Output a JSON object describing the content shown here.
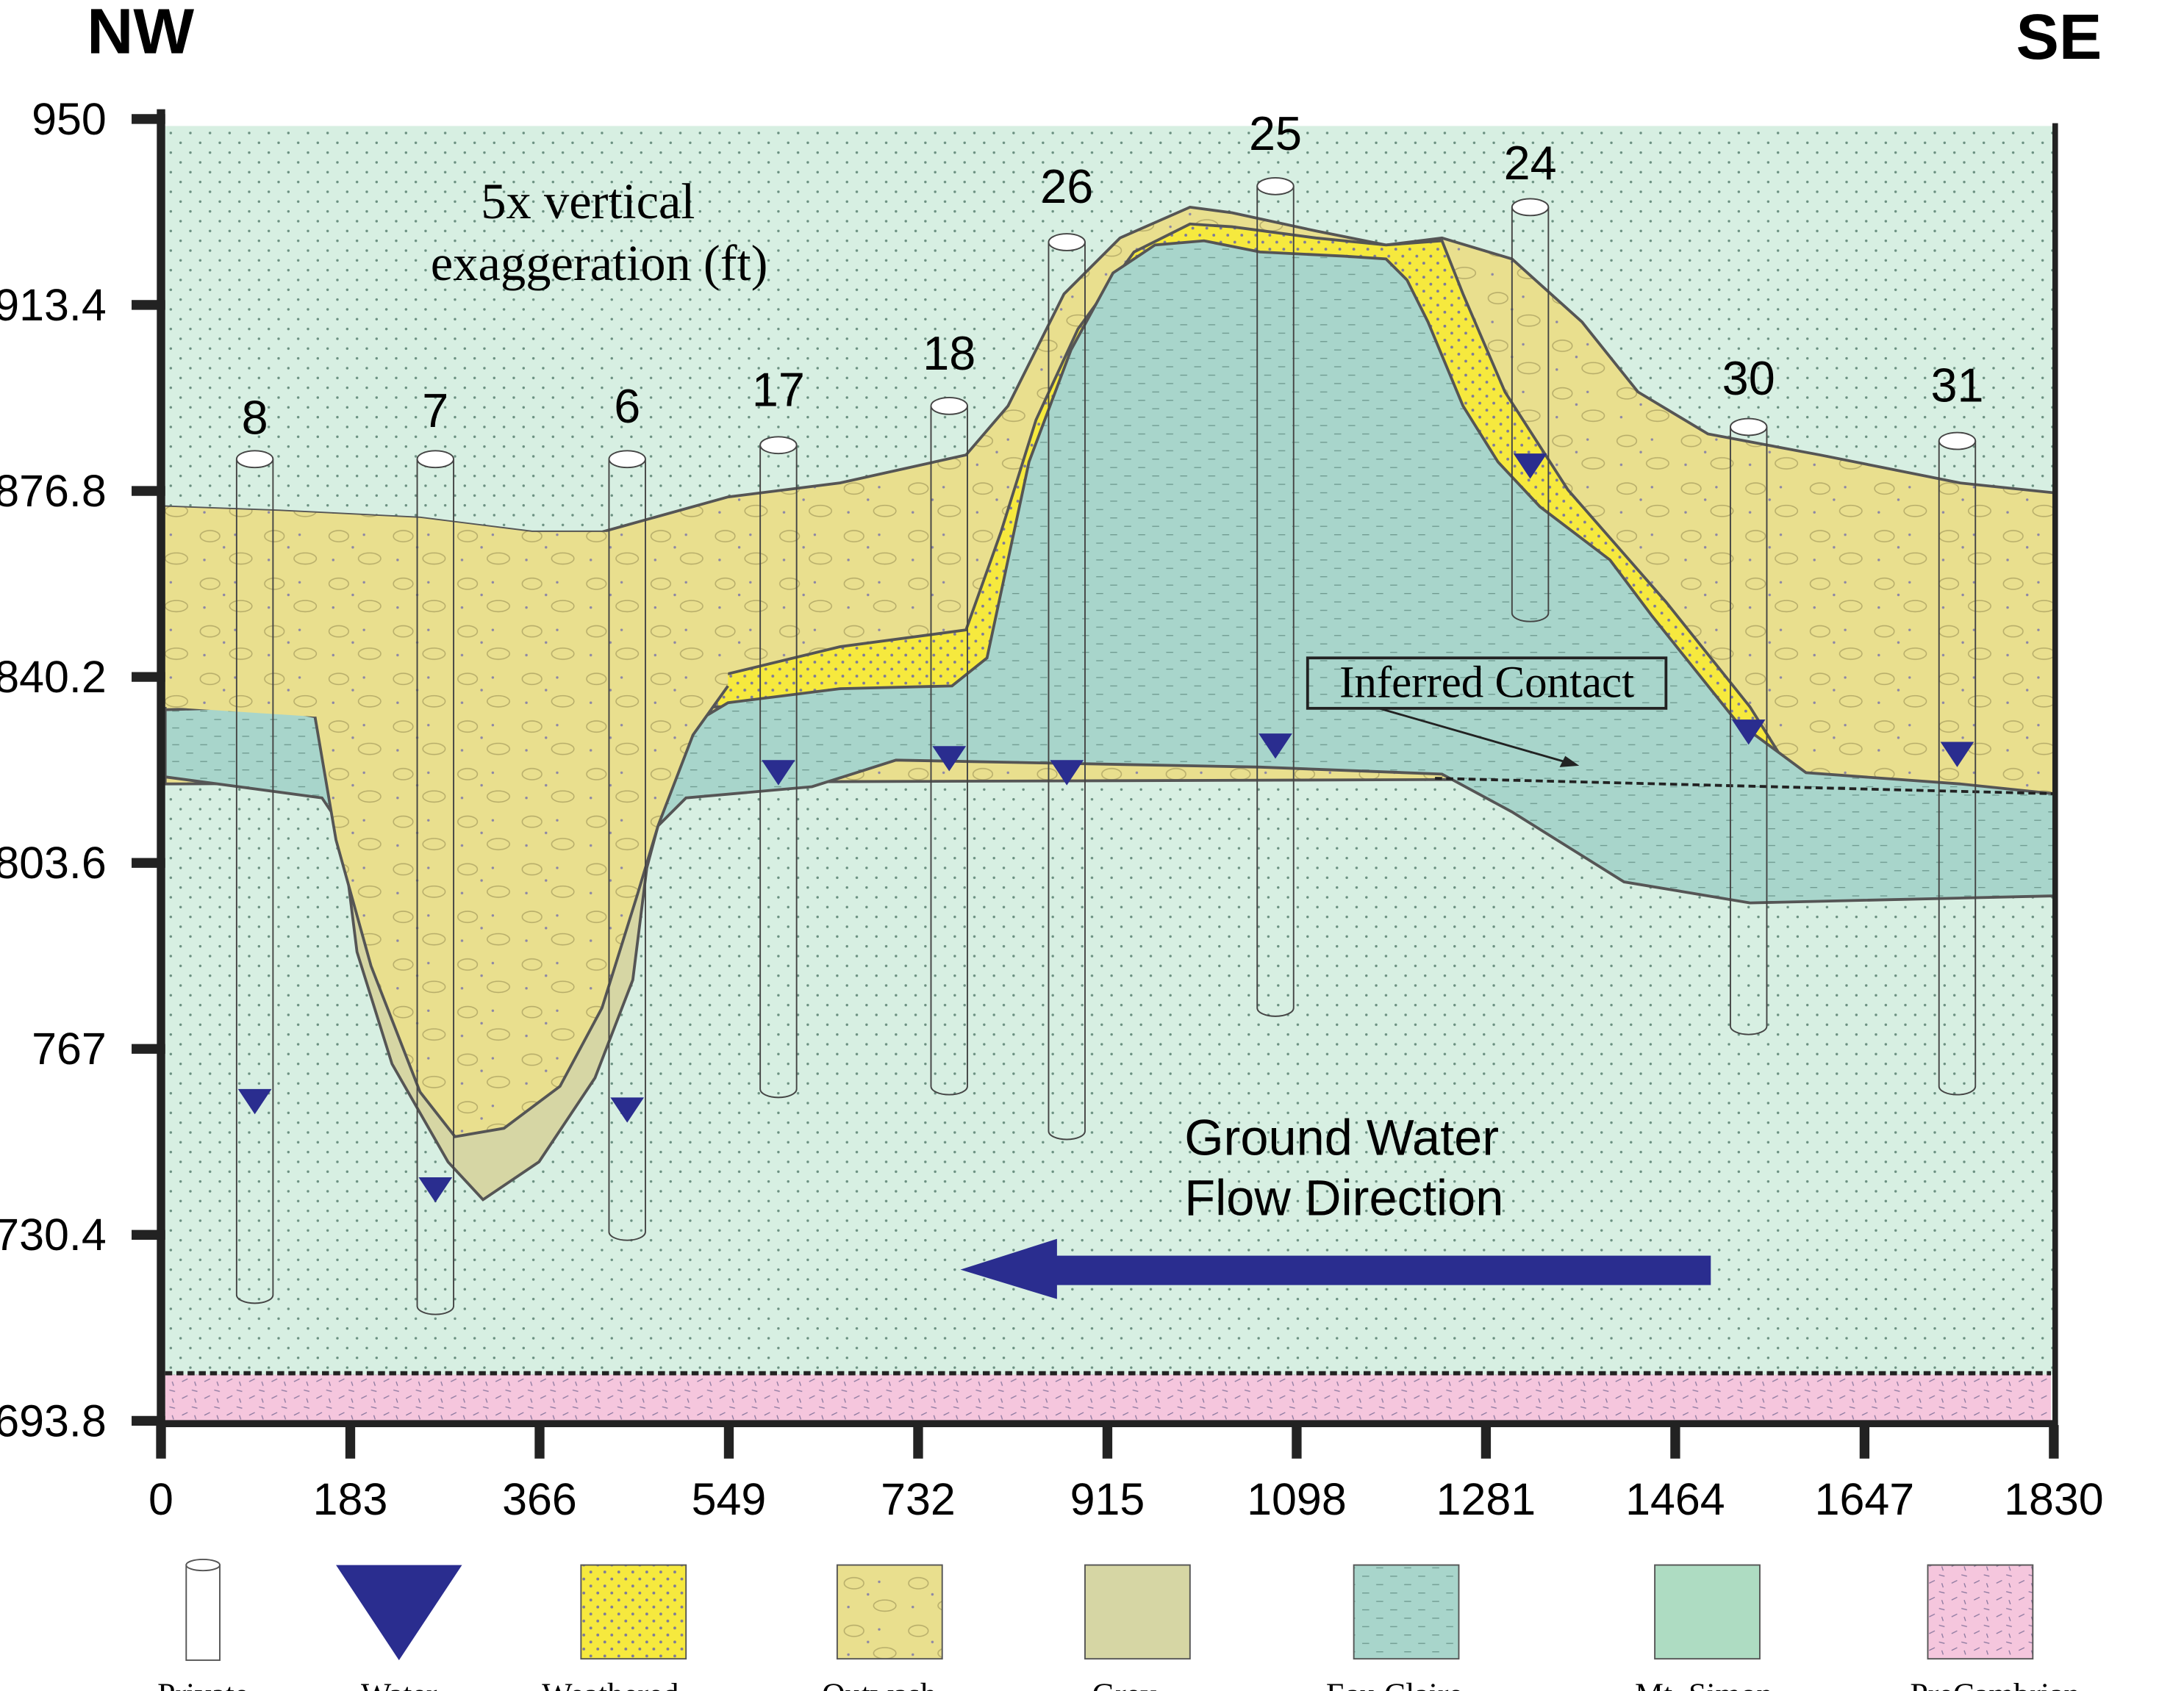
{
  "header": {
    "left": "NW",
    "right": "SE"
  },
  "annotation": [
    "5x vertical",
    "exaggeration (ft)"
  ],
  "inferred_contact": "Inferred Contact",
  "flow_label": [
    "Ground Water",
    "Flow Direction"
  ],
  "axes": {
    "ylim": [
      693.8,
      950
    ],
    "yticks": [
      950,
      913.4,
      876.8,
      840.2,
      803.6,
      767,
      730.4,
      693.8
    ],
    "xlim": [
      0,
      1830
    ],
    "xticks": [
      0,
      183,
      366,
      549,
      732,
      915,
      1098,
      1281,
      1464,
      1647,
      1830
    ]
  },
  "wells": [
    "8",
    "7",
    "6",
    "17",
    "18",
    "26",
    "25",
    "24",
    "30",
    "31"
  ],
  "legend": [
    "Private",
    "Water",
    "Weathered",
    "Outwash",
    "Grey",
    "Eau Claire",
    "Mt. Simon",
    "PreCambrian"
  ]
}
